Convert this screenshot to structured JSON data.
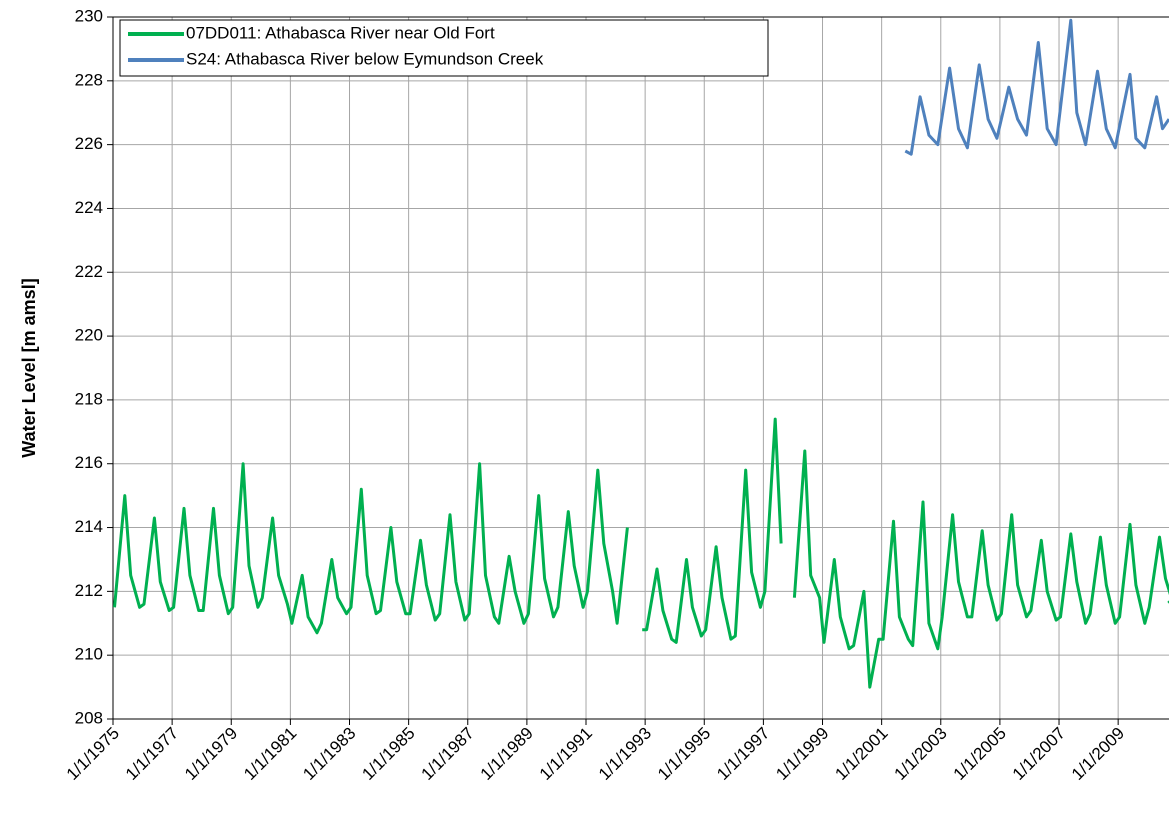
{
  "chart_data": {
    "type": "line",
    "y_label": "Water Level [m amsl]",
    "xlim": [
      1975,
      2010.72
    ],
    "xticks": [
      {
        "value": 1975,
        "label": "1/1/1975"
      },
      {
        "value": 1977,
        "label": "1/1/1977"
      },
      {
        "value": 1979,
        "label": "1/1/1979"
      },
      {
        "value": 1981,
        "label": "1/1/1981"
      },
      {
        "value": 1983,
        "label": "1/1/1983"
      },
      {
        "value": 1985,
        "label": "1/1/1985"
      },
      {
        "value": 1987,
        "label": "1/1/1987"
      },
      {
        "value": 1989,
        "label": "1/1/1989"
      },
      {
        "value": 1991,
        "label": "1/1/1991"
      },
      {
        "value": 1993,
        "label": "1/1/1993"
      },
      {
        "value": 1995,
        "label": "1/1/1995"
      },
      {
        "value": 1997,
        "label": "1/1/1997"
      },
      {
        "value": 1999,
        "label": "1/1/1999"
      },
      {
        "value": 2001,
        "label": "1/1/2001"
      },
      {
        "value": 2003,
        "label": "1/1/2003"
      },
      {
        "value": 2005,
        "label": "1/1/2005"
      },
      {
        "value": 2007,
        "label": "1/1/2007"
      },
      {
        "value": 2009,
        "label": "1/1/2009"
      }
    ],
    "ylim": [
      208,
      230
    ],
    "yticks": [
      208,
      210,
      212,
      214,
      216,
      218,
      220,
      222,
      224,
      226,
      228,
      230
    ],
    "grid": true,
    "legend": "upper left",
    "series": [
      {
        "name": "07DD011: Athabasca River near Old Fort",
        "color": "#00b050",
        "x": [
          1975.05,
          1975.4,
          1975.6,
          1975.9,
          1976.05,
          1976.4,
          1976.6,
          1976.9,
          1977.05,
          1977.4,
          1977.6,
          1977.9,
          1978.05,
          1978.4,
          1978.6,
          1978.9,
          1979.05,
          1979.4,
          1979.6,
          1979.9,
          1980.05,
          1980.4,
          1980.6,
          1980.9,
          1981.05,
          1981.4,
          1981.6,
          1981.9,
          1982.05,
          1982.4,
          1982.6,
          1982.9,
          1983.05,
          1983.4,
          1983.6,
          1983.9,
          1984.05,
          1984.4,
          1984.6,
          1984.9,
          1985.05,
          1985.4,
          1985.6,
          1985.9,
          1986.05,
          1986.4,
          1986.6,
          1986.9,
          1987.05,
          1987.4,
          1987.6,
          1987.9,
          1988.05,
          1988.4,
          1988.6,
          1988.9,
          1989.05,
          1989.4,
          1989.6,
          1989.9,
          1990.05,
          1990.4,
          1990.6,
          1990.9,
          1991.05,
          1991.4,
          1991.6,
          1991.9,
          1992.05,
          1992.4,
          1992.6,
          1992.9,
          1993.05,
          1993.4,
          1993.6,
          1993.9,
          1994.05,
          1994.4,
          1994.6,
          1994.9,
          1995.05,
          1995.4,
          1995.6,
          1995.9,
          1996.05,
          1996.4,
          1996.6,
          1996.9,
          1997.05,
          1997.4,
          1997.6,
          1997.9,
          1998.05,
          1998.4,
          1998.6,
          1998.9,
          1999.05,
          1999.4,
          1999.6,
          1999.9,
          2000.05,
          2000.4,
          2000.6,
          2000.9,
          2001.05,
          2001.4,
          2001.6,
          2001.9,
          2002.05,
          2002.4,
          2002.6,
          2002.9,
          2003.05,
          2003.4,
          2003.6,
          2003.9,
          2004.05,
          2004.4,
          2004.6,
          2004.9,
          2005.05,
          2005.4,
          2005.6,
          2005.9,
          2006.05,
          2006.4,
          2006.6,
          2006.9,
          2007.05,
          2007.4,
          2007.6,
          2007.9,
          2008.05,
          2008.4,
          2008.6,
          2008.9,
          2009.05,
          2009.4,
          2009.6,
          2009.9,
          2010.05,
          2010.4,
          2010.6,
          2010.9,
          2010.7
        ],
        "values": [
          211.5,
          215.0,
          212.5,
          211.5,
          211.6,
          214.3,
          212.3,
          211.4,
          211.5,
          214.6,
          212.5,
          211.4,
          211.4,
          214.6,
          212.5,
          211.3,
          211.5,
          216.0,
          212.8,
          211.5,
          211.8,
          214.3,
          212.5,
          211.6,
          211.0,
          212.5,
          211.2,
          210.7,
          211.0,
          213.0,
          211.8,
          211.3,
          211.5,
          215.2,
          212.5,
          211.3,
          211.4,
          214.0,
          212.3,
          211.3,
          211.3,
          213.6,
          212.2,
          211.1,
          211.3,
          214.4,
          212.3,
          211.1,
          211.3,
          216.0,
          212.5,
          211.2,
          211.0,
          213.1,
          212.0,
          211.0,
          211.3,
          215.0,
          212.4,
          211.2,
          211.5,
          214.5,
          212.8,
          211.5,
          212.0,
          215.8,
          213.5,
          212.0,
          211.0,
          214.0,
          null,
          210.8,
          210.8,
          212.7,
          211.4,
          210.5,
          210.4,
          213.0,
          211.5,
          210.6,
          210.8,
          213.4,
          211.8,
          210.5,
          210.6,
          215.8,
          212.6,
          211.5,
          212.0,
          217.4,
          213.5,
          null,
          211.8,
          216.4,
          212.5,
          211.8,
          210.4,
          213.0,
          211.2,
          210.2,
          210.3,
          212.0,
          209.0,
          210.5,
          210.5,
          214.2,
          211.2,
          210.5,
          210.3,
          214.8,
          211.0,
          210.2,
          211.2,
          214.4,
          212.3,
          211.2,
          211.2,
          213.9,
          212.2,
          211.1,
          211.3,
          214.4,
          212.2,
          211.2,
          211.4,
          213.6,
          212.0,
          211.1,
          211.2,
          213.8,
          212.3,
          211.0,
          211.3,
          213.7,
          212.2,
          211.0,
          211.2,
          214.1,
          212.2,
          211.0,
          211.5,
          213.7,
          212.4,
          211.5,
          211.7
        ]
      },
      {
        "name": "S24: Athabasca River below Eymundson Creek",
        "color": "#4f81bd",
        "x": [
          2001.8,
          2002.0,
          2002.3,
          2002.6,
          2002.9,
          2003.3,
          2003.6,
          2003.9,
          2004.3,
          2004.6,
          2004.9,
          2005.3,
          2005.6,
          2005.9,
          2006.3,
          2006.6,
          2006.9,
          2007.4,
          2007.6,
          2007.9,
          2008.3,
          2008.6,
          2008.9,
          2009.4,
          2009.6,
          2009.9,
          2010.3,
          2010.5,
          2010.72
        ],
        "values": [
          225.8,
          225.7,
          227.5,
          226.3,
          226.0,
          228.4,
          226.5,
          225.9,
          228.5,
          226.8,
          226.2,
          227.8,
          226.8,
          226.3,
          229.2,
          226.5,
          226.0,
          229.9,
          227.0,
          226.0,
          228.3,
          226.5,
          225.9,
          228.2,
          226.2,
          225.9,
          227.5,
          226.5,
          226.8
        ]
      }
    ]
  }
}
